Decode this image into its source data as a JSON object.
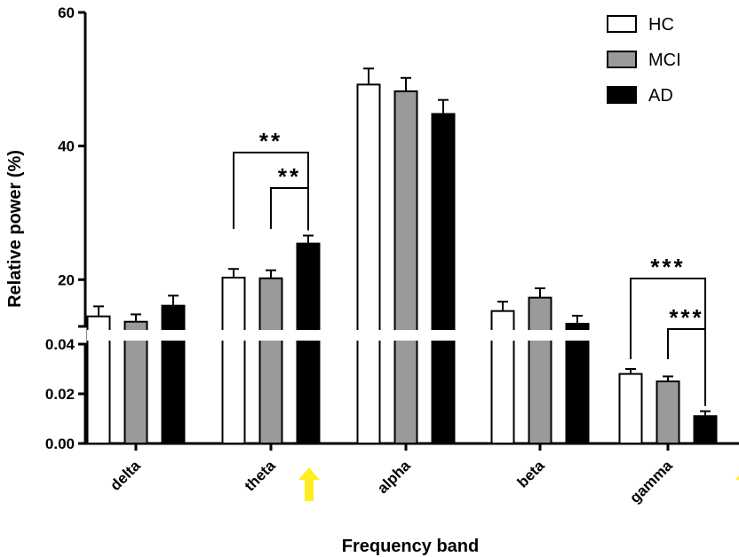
{
  "chart_data": {
    "type": "bar",
    "xlabel": "Frequency band",
    "ylabel": "Relative power (%)",
    "categories": [
      "delta",
      "theta",
      "alpha",
      "beta",
      "gamma"
    ],
    "axis_break": true,
    "upper_axis": {
      "ylim": [
        13,
        60
      ],
      "ticks": [
        "20",
        "40",
        "60"
      ],
      "tick_values": [
        20,
        40,
        60
      ]
    },
    "lower_axis": {
      "ylim": [
        0,
        0.04
      ],
      "ticks": [
        "0.00",
        "0.02",
        "0.04"
      ],
      "tick_values": [
        0,
        0.02,
        0.04
      ]
    },
    "series": [
      {
        "name": "HC",
        "color": "#ffffff",
        "values": [
          14.5,
          20.3,
          49.2,
          15.3,
          0.028
        ],
        "errors": [
          1.5,
          1.3,
          2.4,
          1.4,
          0.002
        ]
      },
      {
        "name": "MCI",
        "color": "#9a9a9a",
        "values": [
          13.7,
          20.2,
          48.2,
          17.3,
          0.025
        ],
        "errors": [
          1.1,
          1.2,
          2.0,
          1.4,
          0.002
        ]
      },
      {
        "name": "AD",
        "color": "#000000",
        "values": [
          16.1,
          25.4,
          44.8,
          13.4,
          0.011
        ],
        "errors": [
          1.5,
          1.2,
          2.1,
          1.2,
          0.002
        ]
      }
    ],
    "axis_region": {
      "upper": [
        0,
        1,
        2,
        3
      ],
      "lower": [
        4
      ]
    },
    "significance": [
      {
        "category": "theta",
        "from_series": "HC",
        "to_series": "AD",
        "label": "**"
      },
      {
        "category": "theta",
        "from_series": "MCI",
        "to_series": "AD",
        "label": "**"
      },
      {
        "category": "gamma",
        "from_series": "HC",
        "to_series": "AD",
        "label": "***"
      },
      {
        "category": "gamma",
        "from_series": "MCI",
        "to_series": "AD",
        "label": "***"
      }
    ],
    "arrows": [
      {
        "category": "theta",
        "color": "#ffee22",
        "icon": "arrow-up-icon"
      },
      {
        "category": "gamma",
        "color": "#ffee22",
        "icon": "arrow-up-icon"
      }
    ],
    "legend_position": "top-right",
    "grid": false
  }
}
